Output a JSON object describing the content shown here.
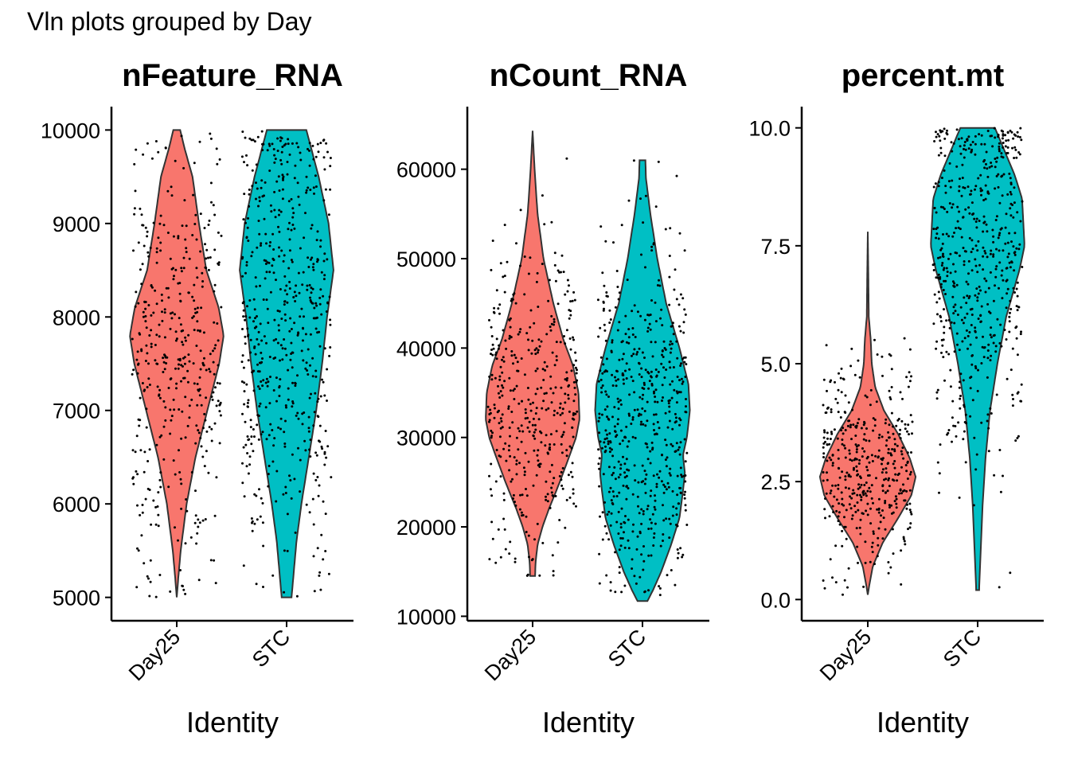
{
  "figure_title": "Vln plots grouped by Day",
  "colors": {
    "Day25": "#F8766D",
    "STC": "#00BFC4",
    "outline": "#333333",
    "points": "#000000",
    "axis": "#000000"
  },
  "chart_data": [
    {
      "type": "violin",
      "title": "nFeature_RNA",
      "xlabel": "Identity",
      "ylabel": "",
      "categories": [
        "Day25",
        "STC"
      ],
      "ylim": [
        4750,
        10250
      ],
      "yticks": [
        5000,
        6000,
        7000,
        8000,
        9000,
        10000
      ],
      "ytick_labels": [
        "5000",
        "6000",
        "7000",
        "8000",
        "9000",
        "10000"
      ],
      "series": [
        {
          "name": "Day25",
          "min": 5000,
          "max": 10000,
          "density": [
            [
              5000,
              0.0
            ],
            [
              5200,
              0.03
            ],
            [
              5500,
              0.08
            ],
            [
              6000,
              0.2
            ],
            [
              6500,
              0.38
            ],
            [
              7000,
              0.62
            ],
            [
              7500,
              0.86
            ],
            [
              7800,
              0.95
            ],
            [
              8100,
              0.85
            ],
            [
              8500,
              0.6
            ],
            [
              9000,
              0.45
            ],
            [
              9500,
              0.32
            ],
            [
              9800,
              0.16
            ],
            [
              10000,
              0.07
            ]
          ],
          "n_points": 420,
          "center": 7600,
          "spread": 1200
        },
        {
          "name": "STC",
          "min": 5000,
          "max": 10000,
          "density": [
            [
              5000,
              0.1
            ],
            [
              5300,
              0.15
            ],
            [
              5600,
              0.2
            ],
            [
              6000,
              0.3
            ],
            [
              6500,
              0.45
            ],
            [
              7000,
              0.6
            ],
            [
              7500,
              0.72
            ],
            [
              8000,
              0.82
            ],
            [
              8500,
              0.95
            ],
            [
              9000,
              0.85
            ],
            [
              9500,
              0.65
            ],
            [
              10000,
              0.4
            ]
          ],
          "n_points": 560,
          "center": 8000,
          "spread": 1300
        }
      ]
    },
    {
      "type": "violin",
      "title": "nCount_RNA",
      "xlabel": "Identity",
      "ylabel": "",
      "categories": [
        "Day25",
        "STC"
      ],
      "ylim": [
        9500,
        67000
      ],
      "yticks": [
        10000,
        20000,
        30000,
        40000,
        50000,
        60000
      ],
      "ytick_labels": [
        "10000",
        "20000",
        "30000",
        "40000",
        "50000",
        "60000"
      ],
      "series": [
        {
          "name": "Day25",
          "min": 14500,
          "max": 64300,
          "density": [
            [
              14500,
              0.05
            ],
            [
              16000,
              0.06
            ],
            [
              18000,
              0.1
            ],
            [
              20000,
              0.2
            ],
            [
              22000,
              0.33
            ],
            [
              25000,
              0.55
            ],
            [
              28000,
              0.75
            ],
            [
              30000,
              0.88
            ],
            [
              32000,
              0.95
            ],
            [
              35000,
              0.93
            ],
            [
              38000,
              0.82
            ],
            [
              41000,
              0.62
            ],
            [
              45000,
              0.42
            ],
            [
              50000,
              0.22
            ],
            [
              55000,
              0.1
            ],
            [
              60000,
              0.04
            ],
            [
              64300,
              0.0
            ]
          ],
          "n_points": 420,
          "center": 34000,
          "spread": 8500
        },
        {
          "name": "STC",
          "min": 11700,
          "max": 61000,
          "density": [
            [
              11700,
              0.1
            ],
            [
              13000,
              0.22
            ],
            [
              15000,
              0.38
            ],
            [
              18000,
              0.58
            ],
            [
              21000,
              0.75
            ],
            [
              24000,
              0.82
            ],
            [
              26000,
              0.86
            ],
            [
              28000,
              0.82
            ],
            [
              30000,
              0.9
            ],
            [
              33000,
              0.96
            ],
            [
              36000,
              0.93
            ],
            [
              40000,
              0.75
            ],
            [
              45000,
              0.48
            ],
            [
              50000,
              0.3
            ],
            [
              55000,
              0.16
            ],
            [
              59000,
              0.07
            ],
            [
              61000,
              0.06
            ]
          ],
          "n_points": 560,
          "center": 32000,
          "spread": 10000
        }
      ]
    },
    {
      "type": "violin",
      "title": "percent.mt",
      "xlabel": "Identity",
      "ylabel": "",
      "categories": [
        "Day25",
        "STC"
      ],
      "ylim": [
        -0.45,
        10.45
      ],
      "yticks": [
        0,
        2.5,
        5,
        7.5,
        10
      ],
      "ytick_labels": [
        "0.0",
        "2.5",
        "5.0",
        "7.5",
        "10.0"
      ],
      "series": [
        {
          "name": "Day25",
          "min": 0.1,
          "max": 7.8,
          "density": [
            [
              0.1,
              0.0
            ],
            [
              0.3,
              0.03
            ],
            [
              0.7,
              0.1
            ],
            [
              1.2,
              0.3
            ],
            [
              1.7,
              0.6
            ],
            [
              2.2,
              0.88
            ],
            [
              2.6,
              0.97
            ],
            [
              3.0,
              0.85
            ],
            [
              3.5,
              0.62
            ],
            [
              4.0,
              0.33
            ],
            [
              4.5,
              0.15
            ],
            [
              5.0,
              0.08
            ],
            [
              5.5,
              0.06
            ],
            [
              6.0,
              0.02
            ],
            [
              7.0,
              0.01
            ],
            [
              7.8,
              0.0
            ]
          ],
          "n_points": 420,
          "center": 2.8,
          "spread": 1.1
        },
        {
          "name": "STC",
          "min": 0.2,
          "max": 10.0,
          "density": [
            [
              0.2,
              0.03
            ],
            [
              1.0,
              0.06
            ],
            [
              2.0,
              0.1
            ],
            [
              3.0,
              0.16
            ],
            [
              4.0,
              0.25
            ],
            [
              5.0,
              0.4
            ],
            [
              6.0,
              0.58
            ],
            [
              7.0,
              0.85
            ],
            [
              7.5,
              0.95
            ],
            [
              8.5,
              0.9
            ],
            [
              9.0,
              0.75
            ],
            [
              9.5,
              0.55
            ],
            [
              10.0,
              0.35
            ]
          ],
          "n_points": 560,
          "center": 7.3,
          "spread": 2.1
        }
      ]
    }
  ]
}
